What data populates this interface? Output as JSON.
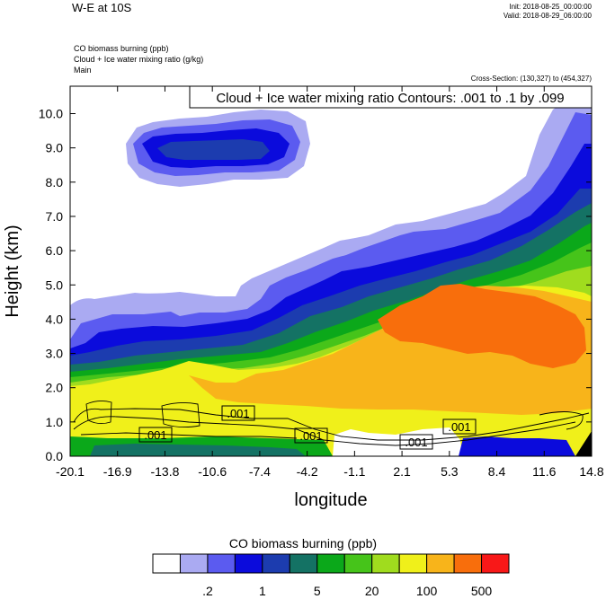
{
  "header": {
    "title": "W-E at 10S",
    "init": "Init: 2018-08-25_00:00:00",
    "valid": "Valid: 2018-08-29_06:00:00",
    "fields": [
      "CO biomass burning   (ppb)",
      "Cloud + Ice water mixing ratio   (g/kg)",
      "Main"
    ],
    "cross_section": "Cross-Section: (130,327) to (454,327)"
  },
  "chart_data": {
    "type": "heatmap",
    "title": "W-E at 10S",
    "xlabel": "longitude",
    "ylabel": "Height (km)",
    "xlim": [
      -20.1,
      14.8
    ],
    "ylim": [
      0,
      10.8
    ],
    "x_ticks": [
      "-20.1",
      "-16.9",
      "-13.8",
      "-10.6",
      "-7.4",
      "-4.2",
      "-1.1",
      "2.1",
      "5.3",
      "8.4",
      "11.6",
      "14.8"
    ],
    "y_ticks": [
      "0.0",
      "1.0",
      "2.0",
      "3.0",
      "4.0",
      "5.0",
      "6.0",
      "7.0",
      "8.0",
      "9.0",
      "10.0"
    ],
    "y_tick_values": [
      0,
      1,
      2,
      3,
      4,
      5,
      6,
      7,
      8,
      9,
      10
    ],
    "contour_info": "Cloud + Ice water mixing ratio Contours: .001 to .1 by .099",
    "contour_labels": [
      ".001",
      ".001",
      ".001",
      ".001",
      ".001"
    ],
    "colorbar": {
      "title": "CO biomass burning  (ppb)",
      "colors": [
        "#ffffff",
        "#aaaaf2",
        "#5b5bf0",
        "#0b0bdc",
        "#1c3caf",
        "#147264",
        "#0ba81a",
        "#46c41a",
        "#a0dc1e",
        "#f0f01a",
        "#f8b41a",
        "#f86e0c",
        "#f81818"
      ],
      "labels": [
        ".2",
        "1",
        "5",
        "20",
        "100",
        "500"
      ]
    }
  }
}
